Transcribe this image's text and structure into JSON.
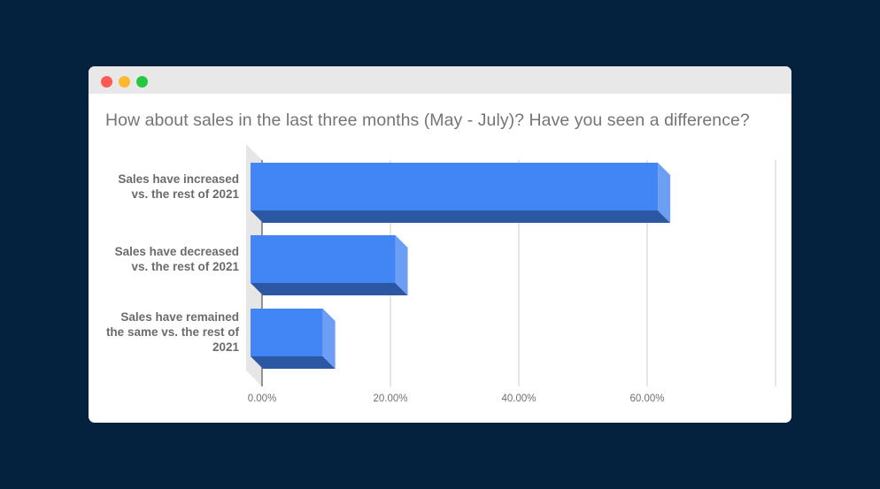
{
  "window": {
    "controls": [
      {
        "name": "close",
        "color": "#fe5a52"
      },
      {
        "name": "minimize",
        "color": "#fdb92e"
      },
      {
        "name": "maximize",
        "color": "#26c840"
      }
    ]
  },
  "chart": {
    "title": "How about sales in the last three months (May - July)? Have you seen a difference?",
    "bar_color_front": "#4285f4",
    "bar_color_side": "#6d9ef6",
    "bar_color_bottom": "#2b57a3"
  },
  "labels": {
    "cat0": [
      "Sales have increased",
      "vs. the rest of 2021"
    ],
    "cat1": [
      "Sales have decreased",
      "vs. the rest of 2021"
    ],
    "cat2": [
      "Sales have remained",
      "the same vs. the rest of",
      "2021"
    ],
    "ticks": [
      "0.00%",
      "20.00%",
      "40.00%",
      "60.00%"
    ]
  },
  "chart_data": {
    "type": "bar",
    "orientation": "horizontal",
    "style": "3d",
    "title": "How about sales in the last three months (May - July)? Have you seen a difference?",
    "categories": [
      "Sales have increased vs. the rest of 2021",
      "Sales have decreased vs. the rest of 2021",
      "Sales have remained the same vs. the rest of 2021"
    ],
    "values": [
      63.6,
      22.7,
      11.4
    ],
    "value_format": "percent",
    "xlabel": "",
    "ylabel": "",
    "xlim": [
      0,
      80
    ],
    "x_ticks": [
      "0.00%",
      "20.00%",
      "40.00%",
      "60.00%"
    ],
    "grid": true,
    "legend": "none"
  }
}
